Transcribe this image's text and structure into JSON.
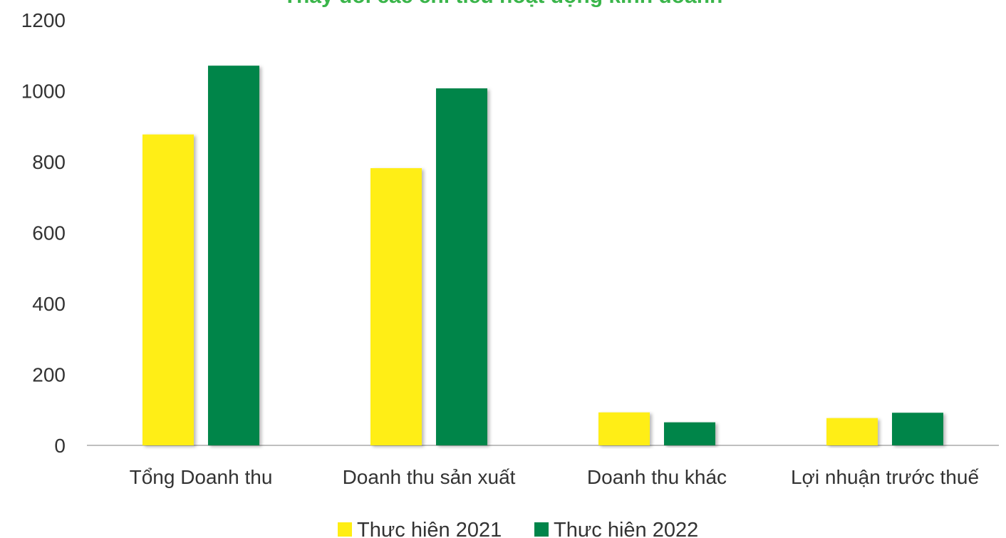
{
  "colors": {
    "series_2021": "#ffee12",
    "series_2022": "#00854a",
    "title": "#3ab54a",
    "axis": "#bfbfbf",
    "text": "#333333"
  },
  "chart_data": {
    "type": "bar",
    "title": "Thay đổi các chỉ tiêu hoạt động kinh doanh",
    "xlabel": "",
    "ylabel": "",
    "ylim": [
      0,
      1200
    ],
    "y_ticks": [
      0,
      200,
      400,
      600,
      800,
      1000,
      1200
    ],
    "categories": [
      "Tổng Doanh thu",
      "Doanh thu sản xuất",
      "Doanh thu khác",
      "Lợi nhuận trước thuế"
    ],
    "series": [
      {
        "name": "Thực hiện 2021",
        "values": [
          877,
          782,
          93,
          77
        ]
      },
      {
        "name": "Thực hiện 2022",
        "values": [
          1071,
          1007,
          65,
          92
        ]
      }
    ],
    "grid": false,
    "legend": "bottom"
  }
}
